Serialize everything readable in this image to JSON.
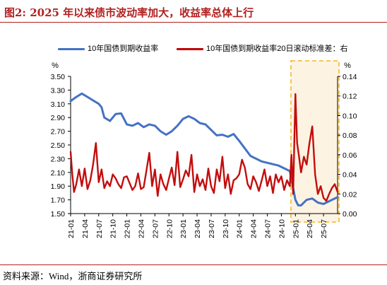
{
  "figure": {
    "title": "图2:   2025 年以来债市波动率加大，收益率总体上行",
    "source": "资料来源：Wind，浙商证券研究所"
  },
  "chart_data": {
    "type": "line",
    "title": "",
    "legend": [
      {
        "name": "10年国债到期收益率",
        "color": "#4472c4",
        "axis": "left"
      },
      {
        "name": "10年国债到期收益率20日滚动标准差：右",
        "color": "#c00000",
        "axis": "right"
      }
    ],
    "legend_position": "top",
    "grid": false,
    "y_left": {
      "unit": "%",
      "range": [
        1.5,
        3.5
      ],
      "ticks": [
        "1.50",
        "1.70",
        "1.90",
        "2.10",
        "2.30",
        "2.50",
        "2.70",
        "2.90",
        "3.10",
        "3.30",
        "3.50"
      ]
    },
    "y_right": {
      "unit": "%",
      "range": [
        0,
        0.14
      ],
      "ticks": [
        "0.00",
        "0.02",
        "0.04",
        "0.06",
        "0.08",
        "0.10",
        "0.12",
        "0.14"
      ]
    },
    "x_range": [
      2021.0,
      2025.75
    ],
    "x_ticks": [
      "21-01",
      "21-04",
      "21-07",
      "21-10",
      "22-01",
      "22-04",
      "22-07",
      "22-10",
      "23-01",
      "23-04",
      "23-07",
      "23-10",
      "24-01",
      "24-04",
      "24-07",
      "24-10",
      "25-01",
      "25-04",
      "25-07"
    ],
    "highlight": {
      "from": 2024.92,
      "to": 2025.75,
      "fill": "#fdf3e3",
      "border": "#f2b824"
    },
    "series": [
      {
        "name": "10年国债到期收益率",
        "axis": "left",
        "color": "#4472c4",
        "x": [
          2021.0,
          2021.1,
          2021.2,
          2021.3,
          2021.4,
          2021.5,
          2021.55,
          2021.6,
          2021.7,
          2021.8,
          2021.9,
          2022.0,
          2022.1,
          2022.2,
          2022.3,
          2022.4,
          2022.5,
          2022.6,
          2022.7,
          2022.8,
          2022.9,
          2023.0,
          2023.1,
          2023.2,
          2023.3,
          2023.4,
          2023.5,
          2023.6,
          2023.7,
          2023.8,
          2023.9,
          2024.0,
          2024.1,
          2024.2,
          2024.3,
          2024.4,
          2024.5,
          2024.6,
          2024.7,
          2024.8,
          2024.9,
          2025.0,
          2025.05,
          2025.1,
          2025.2,
          2025.3,
          2025.4,
          2025.5,
          2025.6,
          2025.7,
          2025.75
        ],
        "y": [
          3.14,
          3.2,
          3.25,
          3.2,
          3.15,
          3.1,
          3.05,
          2.9,
          2.85,
          2.95,
          2.96,
          2.8,
          2.78,
          2.82,
          2.76,
          2.8,
          2.78,
          2.7,
          2.65,
          2.7,
          2.78,
          2.88,
          2.92,
          2.88,
          2.82,
          2.8,
          2.72,
          2.64,
          2.65,
          2.62,
          2.66,
          2.56,
          2.45,
          2.34,
          2.3,
          2.26,
          2.24,
          2.22,
          2.2,
          2.16,
          2.12,
          1.7,
          1.62,
          1.62,
          1.7,
          1.72,
          1.66,
          1.64,
          1.68,
          1.72,
          1.74
        ]
      },
      {
        "name": "10年国债到期收益率20日滚动标准差：右",
        "axis": "right",
        "color": "#c00000",
        "x": [
          2021.0,
          2021.03,
          2021.06,
          2021.1,
          2021.15,
          2021.2,
          2021.25,
          2021.3,
          2021.35,
          2021.4,
          2021.45,
          2021.5,
          2021.55,
          2021.6,
          2021.65,
          2021.7,
          2021.75,
          2021.8,
          2021.85,
          2021.9,
          2021.95,
          2022.0,
          2022.05,
          2022.1,
          2022.15,
          2022.2,
          2022.25,
          2022.3,
          2022.35,
          2022.4,
          2022.45,
          2022.5,
          2022.55,
          2022.6,
          2022.65,
          2022.7,
          2022.75,
          2022.8,
          2022.85,
          2022.9,
          2022.95,
          2023.0,
          2023.05,
          2023.1,
          2023.15,
          2023.2,
          2023.25,
          2023.3,
          2023.35,
          2023.4,
          2023.45,
          2023.5,
          2023.55,
          2023.6,
          2023.65,
          2023.7,
          2023.75,
          2023.8,
          2023.85,
          2023.9,
          2023.95,
          2024.0,
          2024.05,
          2024.1,
          2024.15,
          2024.2,
          2024.25,
          2024.3,
          2024.35,
          2024.4,
          2024.45,
          2024.5,
          2024.55,
          2024.6,
          2024.65,
          2024.7,
          2024.75,
          2024.8,
          2024.85,
          2024.9,
          2024.93,
          2024.96,
          2025.0,
          2025.03,
          2025.06,
          2025.1,
          2025.15,
          2025.2,
          2025.25,
          2025.3,
          2025.35,
          2025.4,
          2025.45,
          2025.5,
          2025.55,
          2025.6,
          2025.65,
          2025.7,
          2025.75
        ],
        "y": [
          0.063,
          0.04,
          0.022,
          0.03,
          0.045,
          0.028,
          0.046,
          0.025,
          0.034,
          0.05,
          0.072,
          0.032,
          0.045,
          0.026,
          0.033,
          0.028,
          0.04,
          0.036,
          0.03,
          0.026,
          0.037,
          0.038,
          0.031,
          0.024,
          0.028,
          0.041,
          0.025,
          0.027,
          0.044,
          0.062,
          0.028,
          0.045,
          0.018,
          0.04,
          0.03,
          0.024,
          0.036,
          0.047,
          0.029,
          0.063,
          0.027,
          0.035,
          0.044,
          0.038,
          0.06,
          0.022,
          0.04,
          0.028,
          0.035,
          0.024,
          0.046,
          0.028,
          0.021,
          0.045,
          0.033,
          0.058,
          0.026,
          0.04,
          0.02,
          0.034,
          0.036,
          0.04,
          0.055,
          0.047,
          0.03,
          0.025,
          0.038,
          0.032,
          0.023,
          0.034,
          0.045,
          0.028,
          0.038,
          0.021,
          0.04,
          0.032,
          0.038,
          0.024,
          0.034,
          0.028,
          0.06,
          0.02,
          0.122,
          0.072,
          0.06,
          0.042,
          0.058,
          0.05,
          0.072,
          0.089,
          0.04,
          0.02,
          0.028,
          0.016,
          0.013,
          0.02,
          0.026,
          0.03,
          0.022
        ]
      }
    ]
  }
}
